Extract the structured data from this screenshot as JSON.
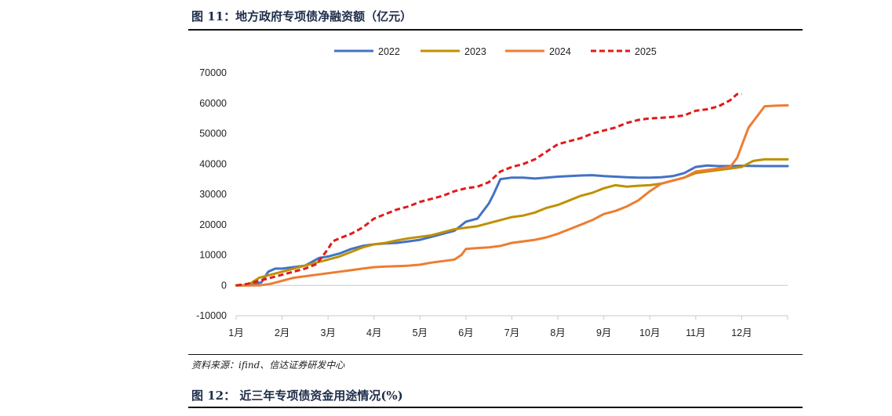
{
  "header": {
    "figure_title": "图 11：地方政府专项债净融资额（亿元）"
  },
  "footer": {
    "source": "资料来源：ifind、信达证券研发中心",
    "next_figure_title": "图 12：  近三年专项债资金用途情况(%)"
  },
  "chart_data": {
    "type": "line",
    "title": "",
    "xlabel": "",
    "ylabel": "",
    "ylim": [
      -10000,
      70000
    ],
    "y_ticks": [
      -10000,
      0,
      10000,
      20000,
      30000,
      40000,
      50000,
      60000,
      70000
    ],
    "x_ticks": [
      "1月",
      "2月",
      "3月",
      "4月",
      "5月",
      "6月",
      "7月",
      "8月",
      "9月",
      "10月",
      "11月",
      "12月"
    ],
    "x_range": [
      1,
      13
    ],
    "grid": false,
    "legend_position": "top",
    "series": [
      {
        "name": "2022",
        "color": "#4472C4",
        "dash": false,
        "x": [
          1,
          1.3,
          1.55,
          1.7,
          1.85,
          2.0,
          2.25,
          2.5,
          2.8,
          3.0,
          3.25,
          3.5,
          3.75,
          4.0,
          4.25,
          4.5,
          4.75,
          5.0,
          5.25,
          5.5,
          5.75,
          6.0,
          6.25,
          6.5,
          6.6,
          6.75,
          7.0,
          7.25,
          7.5,
          7.75,
          8.0,
          8.25,
          8.5,
          8.75,
          9.0,
          9.25,
          9.5,
          9.75,
          10.0,
          10.25,
          10.5,
          10.75,
          11.0,
          11.25,
          11.5,
          11.75,
          12.0,
          12.5,
          13.0
        ],
        "y": [
          0,
          0,
          1000,
          4500,
          5500,
          5500,
          6000,
          6500,
          9000,
          9500,
          10500,
          12000,
          13000,
          13500,
          13800,
          14000,
          14500,
          15000,
          16000,
          17000,
          18000,
          21000,
          22000,
          27000,
          30000,
          35000,
          35500,
          35500,
          35200,
          35500,
          35800,
          36000,
          36200,
          36300,
          36000,
          35800,
          35600,
          35500,
          35500,
          35600,
          36000,
          37000,
          39000,
          39500,
          39300,
          39300,
          39400,
          39300,
          39300
        ]
      },
      {
        "name": "2023",
        "color": "#BF9000",
        "dash": false,
        "x": [
          1,
          1.25,
          1.5,
          1.75,
          2.0,
          2.25,
          2.5,
          2.75,
          3.0,
          3.25,
          3.5,
          3.75,
          4.0,
          4.25,
          4.5,
          4.75,
          5.0,
          5.25,
          5.5,
          5.75,
          6.0,
          6.25,
          6.5,
          6.75,
          7.0,
          7.25,
          7.5,
          7.75,
          8.0,
          8.25,
          8.5,
          8.75,
          9.0,
          9.25,
          9.5,
          9.75,
          10.0,
          10.25,
          10.5,
          10.75,
          11.0,
          11.25,
          11.5,
          11.75,
          12.0,
          12.25,
          12.5,
          13.0
        ],
        "y": [
          0,
          0,
          2500,
          3500,
          4500,
          5500,
          6500,
          7500,
          8500,
          9500,
          11000,
          12500,
          13500,
          14000,
          14800,
          15500,
          16000,
          16500,
          17500,
          18500,
          19000,
          19500,
          20500,
          21500,
          22500,
          23000,
          24000,
          25500,
          26500,
          28000,
          29500,
          30500,
          32000,
          33000,
          32500,
          32800,
          33000,
          33500,
          34500,
          35500,
          37000,
          37500,
          38000,
          38500,
          39000,
          41000,
          41500,
          41500
        ]
      },
      {
        "name": "2024",
        "color": "#ED7D31",
        "dash": false,
        "x": [
          1,
          1.5,
          1.75,
          2.0,
          2.25,
          2.5,
          2.75,
          3.0,
          3.25,
          3.5,
          3.75,
          4.0,
          4.25,
          4.5,
          4.75,
          5.0,
          5.25,
          5.5,
          5.75,
          5.9,
          6.0,
          6.25,
          6.5,
          6.75,
          7.0,
          7.25,
          7.5,
          7.75,
          8.0,
          8.25,
          8.5,
          8.75,
          9.0,
          9.25,
          9.5,
          9.75,
          10.0,
          10.25,
          10.5,
          10.75,
          11.0,
          11.25,
          11.5,
          11.75,
          11.9,
          12.0,
          12.15,
          12.3,
          12.5,
          12.75,
          13.0
        ],
        "y": [
          0,
          0,
          500,
          1500,
          2500,
          3000,
          3500,
          4000,
          4500,
          5000,
          5500,
          6000,
          6200,
          6300,
          6500,
          6800,
          7500,
          8000,
          8500,
          10000,
          12000,
          12300,
          12500,
          13000,
          14000,
          14500,
          15000,
          15800,
          17000,
          18500,
          20000,
          21500,
          23500,
          24500,
          26000,
          28000,
          31000,
          33500,
          34500,
          35500,
          37500,
          38000,
          38500,
          39000,
          42000,
          46000,
          52000,
          55000,
          59000,
          59200,
          59300
        ]
      },
      {
        "name": "2025",
        "color": "#E11A1A",
        "dash": true,
        "x": [
          1,
          1.25,
          1.5,
          1.75,
          2.0,
          2.25,
          2.5,
          2.75,
          3.0,
          3.1,
          3.25,
          3.5,
          3.75,
          4.0,
          4.25,
          4.5,
          4.75,
          5.0,
          5.25,
          5.5,
          5.75,
          6.0,
          6.25,
          6.5,
          6.75,
          7.0,
          7.25,
          7.5,
          7.75,
          8.0,
          8.25,
          8.5,
          8.75,
          9.0,
          9.25,
          9.5,
          9.75,
          10.0,
          10.25,
          10.5,
          10.75,
          11.0,
          11.25,
          11.5,
          11.75,
          11.9,
          12.0
        ],
        "y": [
          0,
          500,
          1500,
          2500,
          3500,
          4500,
          5500,
          7000,
          12000,
          14500,
          15500,
          17000,
          19000,
          22000,
          23500,
          25000,
          26000,
          27500,
          28500,
          29500,
          31000,
          32000,
          32500,
          34000,
          37500,
          39000,
          40000,
          41500,
          44000,
          46500,
          47500,
          48500,
          50000,
          51000,
          52000,
          53500,
          54500,
          55000,
          55200,
          55500,
          56000,
          57500,
          58000,
          59000,
          61000,
          63000,
          63000
        ]
      }
    ]
  }
}
